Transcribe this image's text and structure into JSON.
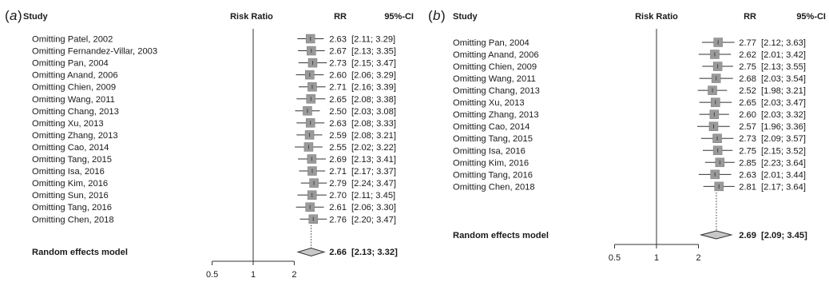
{
  "panels": [
    {
      "label_letter": "a",
      "headers": {
        "study": "Study",
        "plot": "Risk Ratio",
        "rr": "RR",
        "ci": "95%-CI"
      },
      "pooled": {
        "label": "Random effects model",
        "rr": "2.66",
        "ci": "[2.13; 3.32]"
      },
      "xticks": [
        "0.5",
        "1",
        "2"
      ]
    },
    {
      "label_letter": "b",
      "headers": {
        "study": "Study",
        "plot": "Risk Ratio",
        "rr": "RR",
        "ci": "95%-CI"
      },
      "pooled": {
        "label": "Random effects model",
        "rr": "2.69",
        "ci": "[2.09; 3.45]"
      },
      "xticks": [
        "0.5",
        "1",
        "2"
      ]
    }
  ],
  "colors": {
    "box": "#9a9a9a",
    "diamond": "#c8c8c8",
    "line": "#333333"
  },
  "chart_data": [
    {
      "type": "forest",
      "scale": "log",
      "xlabel": "Risk Ratio",
      "xticks": [
        0.5,
        1,
        2
      ],
      "xlim": [
        0.5,
        2
      ],
      "rows": [
        {
          "label": "Omitting Patel, 2002",
          "rr": 2.63,
          "lo": 2.11,
          "hi": 3.29,
          "rr_text": "2.63",
          "ci_text": "[2.11; 3.29]"
        },
        {
          "label": "Omitting Fernandez-Villar, 2003",
          "rr": 2.67,
          "lo": 2.13,
          "hi": 3.35,
          "rr_text": "2.67",
          "ci_text": "[2.13; 3.35]"
        },
        {
          "label": "Omitting Pan, 2004",
          "rr": 2.73,
          "lo": 2.15,
          "hi": 3.47,
          "rr_text": "2.73",
          "ci_text": "[2.15; 3.47]"
        },
        {
          "label": "Omitting Anand, 2006",
          "rr": 2.6,
          "lo": 2.06,
          "hi": 3.29,
          "rr_text": "2.60",
          "ci_text": "[2.06; 3.29]"
        },
        {
          "label": "Omitting Chien, 2009",
          "rr": 2.71,
          "lo": 2.16,
          "hi": 3.39,
          "rr_text": "2.71",
          "ci_text": "[2.16; 3.39]"
        },
        {
          "label": "Omitting Wang, 2011",
          "rr": 2.65,
          "lo": 2.08,
          "hi": 3.38,
          "rr_text": "2.65",
          "ci_text": "[2.08; 3.38]"
        },
        {
          "label": "Omitting Chang, 2013",
          "rr": 2.5,
          "lo": 2.03,
          "hi": 3.08,
          "rr_text": "2.50",
          "ci_text": "[2.03; 3.08]"
        },
        {
          "label": "Omitting Xu, 2013",
          "rr": 2.63,
          "lo": 2.08,
          "hi": 3.33,
          "rr_text": "2.63",
          "ci_text": "[2.08; 3.33]"
        },
        {
          "label": "Omitting Zhang, 2013",
          "rr": 2.59,
          "lo": 2.08,
          "hi": 3.21,
          "rr_text": "2.59",
          "ci_text": "[2.08; 3.21]"
        },
        {
          "label": "Omitting Cao, 2014",
          "rr": 2.55,
          "lo": 2.02,
          "hi": 3.22,
          "rr_text": "2.55",
          "ci_text": "[2.02; 3.22]"
        },
        {
          "label": "Omitting Tang, 2015",
          "rr": 2.69,
          "lo": 2.13,
          "hi": 3.41,
          "rr_text": "2.69",
          "ci_text": "[2.13; 3.41]"
        },
        {
          "label": "Omitting Isa, 2016",
          "rr": 2.71,
          "lo": 2.17,
          "hi": 3.37,
          "rr_text": "2.71",
          "ci_text": "[2.17; 3.37]"
        },
        {
          "label": "Omitting Kim, 2016",
          "rr": 2.79,
          "lo": 2.24,
          "hi": 3.47,
          "rr_text": "2.79",
          "ci_text": "[2.24; 3.47]"
        },
        {
          "label": "Omitting Sun, 2016",
          "rr": 2.7,
          "lo": 2.11,
          "hi": 3.45,
          "rr_text": "2.70",
          "ci_text": "[2.11; 3.45]"
        },
        {
          "label": "Omitting Tang, 2016",
          "rr": 2.61,
          "lo": 2.06,
          "hi": 3.3,
          "rr_text": "2.61",
          "ci_text": "[2.06; 3.30]"
        },
        {
          "label": "Omitting Chen, 2018",
          "rr": 2.76,
          "lo": 2.2,
          "hi": 3.47,
          "rr_text": "2.76",
          "ci_text": "[2.20; 3.47]"
        }
      ],
      "pooled": {
        "label": "Random effects model",
        "rr": 2.66,
        "lo": 2.13,
        "hi": 3.32
      }
    },
    {
      "type": "forest",
      "scale": "log",
      "xlabel": "Risk Ratio",
      "xticks": [
        0.5,
        1,
        2
      ],
      "xlim": [
        0.5,
        2
      ],
      "rows": [
        {
          "label": "Omitting Pan, 2004",
          "rr": 2.77,
          "lo": 2.12,
          "hi": 3.63,
          "rr_text": "2.77",
          "ci_text": "[2.12; 3.63]"
        },
        {
          "label": "Omitting Anand, 2006",
          "rr": 2.62,
          "lo": 2.01,
          "hi": 3.42,
          "rr_text": "2.62",
          "ci_text": "[2.01; 3.42]"
        },
        {
          "label": "Omitting Chien, 2009",
          "rr": 2.75,
          "lo": 2.13,
          "hi": 3.55,
          "rr_text": "2.75",
          "ci_text": "[2.13; 3.55]"
        },
        {
          "label": "Omitting Wang, 2011",
          "rr": 2.68,
          "lo": 2.03,
          "hi": 3.54,
          "rr_text": "2.68",
          "ci_text": "[2.03; 3.54]"
        },
        {
          "label": "Omitting Chang, 2013",
          "rr": 2.52,
          "lo": 1.98,
          "hi": 3.21,
          "rr_text": "2.52",
          "ci_text": "[1.98; 3.21]"
        },
        {
          "label": "Omitting Xu, 2013",
          "rr": 2.65,
          "lo": 2.03,
          "hi": 3.47,
          "rr_text": "2.65",
          "ci_text": "[2.03; 3.47]"
        },
        {
          "label": "Omitting Zhang, 2013",
          "rr": 2.6,
          "lo": 2.03,
          "hi": 3.32,
          "rr_text": "2.60",
          "ci_text": "[2.03; 3.32]"
        },
        {
          "label": "Omitting Cao, 2014",
          "rr": 2.57,
          "lo": 1.96,
          "hi": 3.36,
          "rr_text": "2.57",
          "ci_text": "[1.96; 3.36]"
        },
        {
          "label": "Omitting Tang, 2015",
          "rr": 2.73,
          "lo": 2.09,
          "hi": 3.57,
          "rr_text": "2.73",
          "ci_text": "[2.09; 3.57]"
        },
        {
          "label": "Omitting Isa, 2016",
          "rr": 2.75,
          "lo": 2.15,
          "hi": 3.52,
          "rr_text": "2.75",
          "ci_text": "[2.15; 3.52]"
        },
        {
          "label": "Omitting Kim, 2016",
          "rr": 2.85,
          "lo": 2.23,
          "hi": 3.64,
          "rr_text": "2.85",
          "ci_text": "[2.23; 3.64]"
        },
        {
          "label": "Omitting Tang, 2016",
          "rr": 2.63,
          "lo": 2.01,
          "hi": 3.44,
          "rr_text": "2.63",
          "ci_text": "[2.01; 3.44]"
        },
        {
          "label": "Omitting Chen, 2018",
          "rr": 2.81,
          "lo": 2.17,
          "hi": 3.64,
          "rr_text": "2.81",
          "ci_text": "[2.17; 3.64]"
        }
      ],
      "pooled": {
        "label": "Random effects model",
        "rr": 2.69,
        "lo": 2.09,
        "hi": 3.45
      }
    }
  ]
}
